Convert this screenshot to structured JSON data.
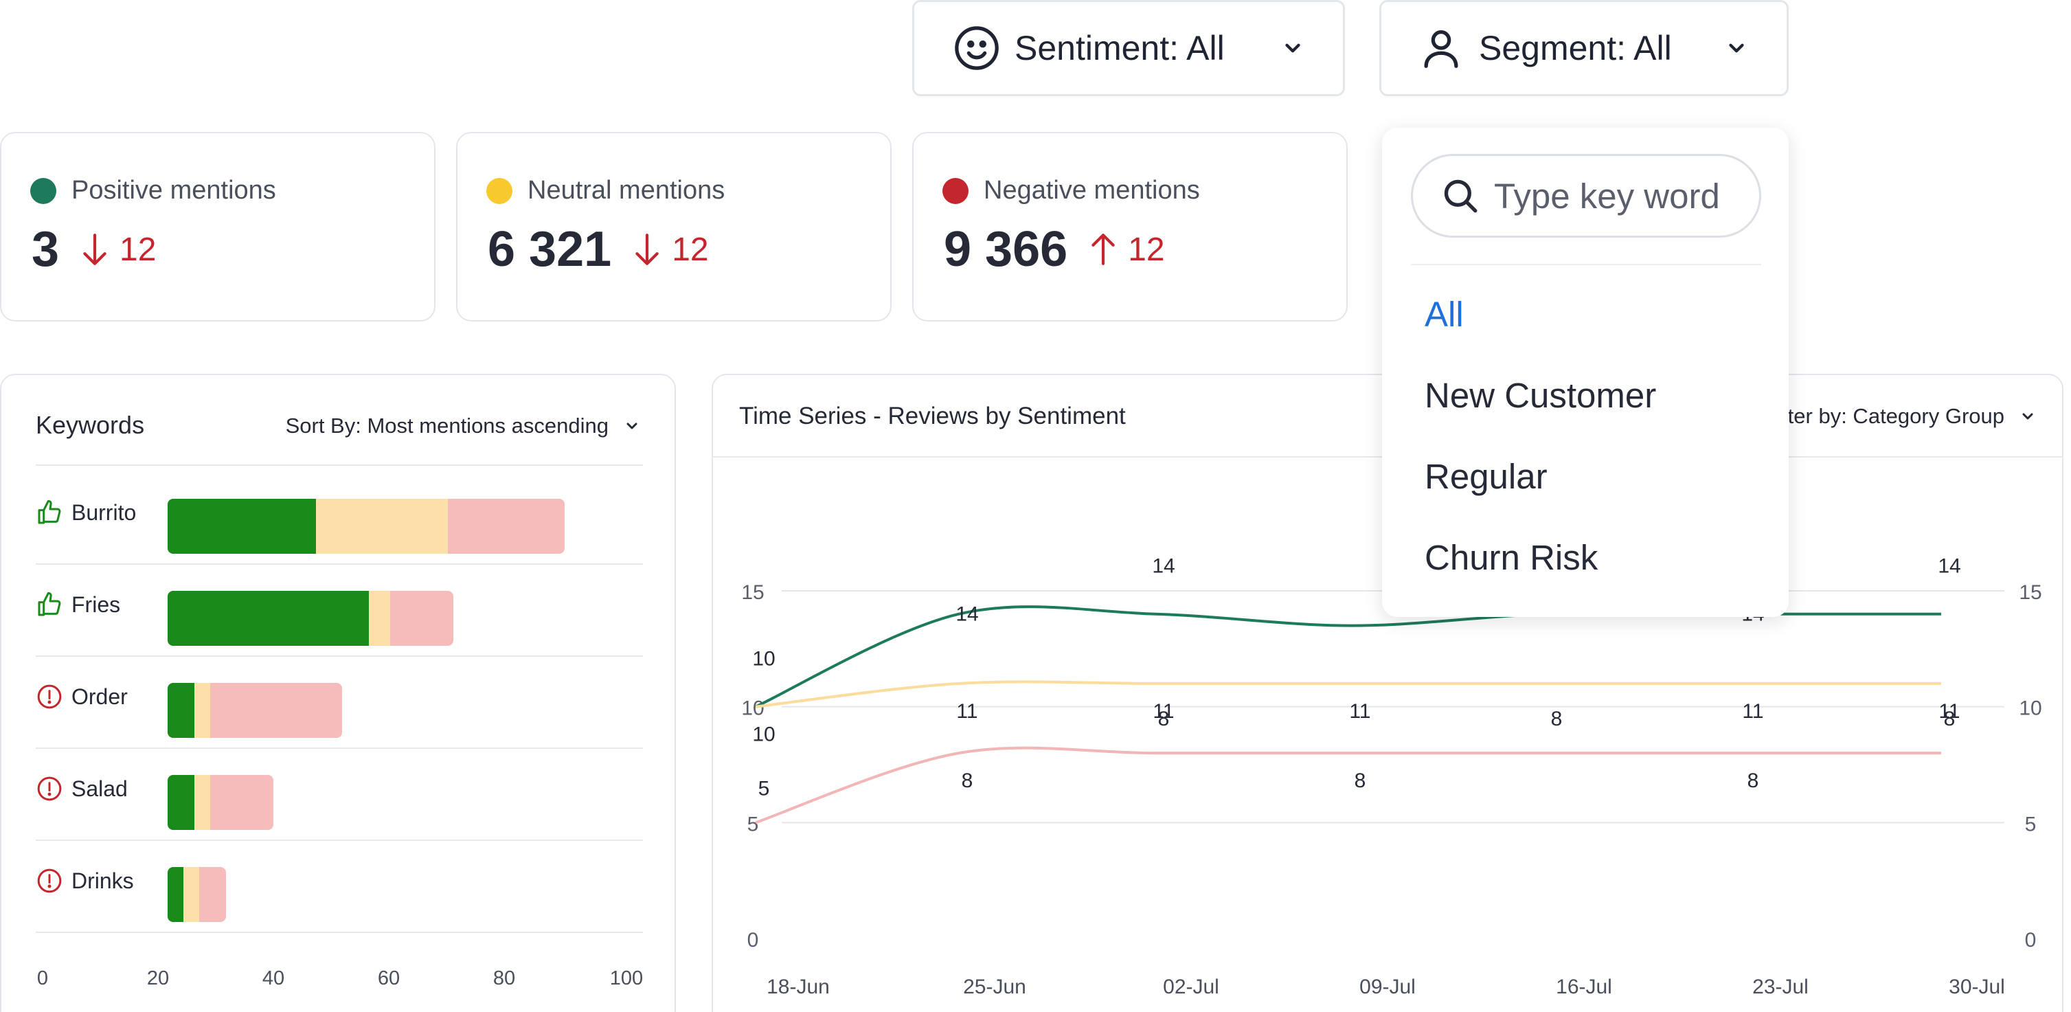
{
  "filters": {
    "sentiment": {
      "label": "Sentiment: All",
      "icon": "smiley-icon"
    },
    "segment": {
      "label": "Segment: All",
      "icon": "user-icon"
    }
  },
  "kpis": [
    {
      "label": "Positive mentions",
      "value": "3",
      "delta": "12",
      "direction": "down",
      "dot_color": "#1e7a5c"
    },
    {
      "label": "Neutral mentions",
      "value": "6 321",
      "delta": "12",
      "direction": "down",
      "dot_color": "#f8c92f"
    },
    {
      "label": "Negative mentions",
      "value": "9 366",
      "delta": "12",
      "direction": "up",
      "dot_color": "#c4262e"
    }
  ],
  "colors": {
    "positive": "#1a8a1a",
    "neutral": "#fde0a8",
    "negative": "#f6bcbc",
    "delta": "#c4262e",
    "accent": "#1f6fdc"
  },
  "keywords": {
    "title": "Keywords",
    "sort_prefix": "Sort By: ",
    "sort_value": "Most mentions ascending",
    "axis_ticks": [
      "0",
      "20",
      "40",
      "60",
      "80",
      "100"
    ],
    "axis_max": 100,
    "items": [
      {
        "name": "Burrito",
        "icon": "thumbs-up-icon",
        "positive": 28,
        "neutral": 25,
        "negative": 22
      },
      {
        "name": "Fries",
        "icon": "thumbs-up-icon",
        "positive": 38,
        "neutral": 4,
        "negative": 12
      },
      {
        "name": "Order",
        "icon": "alert-circle-icon",
        "positive": 5,
        "neutral": 3,
        "negative": 25
      },
      {
        "name": "Salad",
        "icon": "alert-circle-icon",
        "positive": 5,
        "neutral": 3,
        "negative": 12
      },
      {
        "name": "Drinks",
        "icon": "alert-circle-icon",
        "positive": 3,
        "neutral": 3,
        "negative": 5
      }
    ]
  },
  "timeseries": {
    "title": "Time Series - Reviews by Sentiment",
    "filter_label": "Filter by: Category Group"
  },
  "chart_data": {
    "type": "line",
    "title": "Time Series - Reviews by Sentiment",
    "x": [
      "18-Jun",
      "25-Jun",
      "02-Jul",
      "09-Jul",
      "16-Jul",
      "23-Jul",
      "30-Jul"
    ],
    "ylim": [
      0,
      15
    ],
    "y_ticks": [
      "0",
      "5",
      "10",
      "15"
    ],
    "grid": true,
    "series": [
      {
        "color": "#1e7a5c",
        "values": [
          10,
          14,
          14,
          13.5,
          14,
          14,
          14
        ],
        "labels": [
          "10",
          "14",
          "14",
          "",
          "",
          "14",
          "14"
        ]
      },
      {
        "color": "#fbdc9c",
        "values": [
          10,
          11,
          11,
          11,
          11,
          11,
          11
        ],
        "labels": [
          "10",
          "11",
          "11",
          "11",
          "",
          "11",
          "11"
        ]
      },
      {
        "color": "#f2b6b6",
        "values": [
          5,
          8,
          8,
          8,
          8,
          8,
          8
        ],
        "labels": [
          "5",
          "8",
          "8",
          "8",
          "8",
          "8",
          "8"
        ]
      }
    ]
  },
  "dropdown": {
    "search_placeholder": "Type key word",
    "options": [
      "All",
      "New Customer",
      "Regular",
      "Churn Risk"
    ],
    "selected": "All"
  }
}
